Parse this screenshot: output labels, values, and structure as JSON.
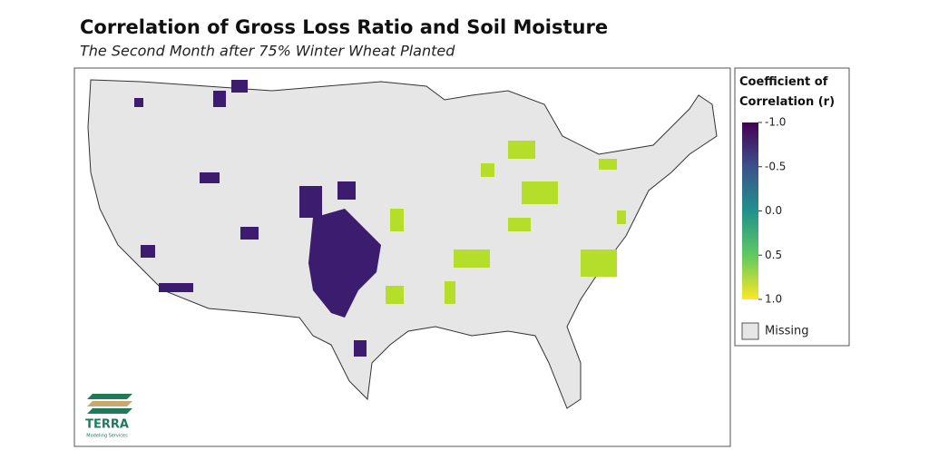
{
  "title": "Correlation of Gross Loss Ratio and Soil Moisture",
  "subtitle": "The Second Month after 75% Winter Wheat Planted",
  "legend": {
    "title": "Coefficient of Correlation (r)",
    "lim": [
      -1,
      1
    ],
    "ticks": [
      {
        "value": -1,
        "label": "-1.0"
      },
      -0.5,
      {
        "value": 0,
        "label": "0.0"
      },
      0.5,
      {
        "value": 1,
        "label": "1.0"
      }
    ],
    "missing": "Missing"
  },
  "logo": {
    "name": "TERRA",
    "tagline": "Modeling Services"
  }
}
